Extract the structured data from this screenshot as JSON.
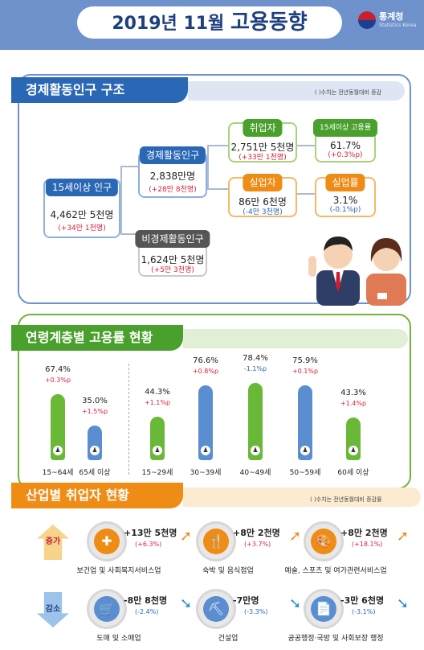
{
  "header": {
    "title_prefix": "2019년 11월",
    "title_main": "고용동향",
    "logo_name": "통계청",
    "logo_sub": "Statistics Korea"
  },
  "structure": {
    "title": "경제활동인구 구조",
    "note": "(   )수치는 전년동월대비 증감",
    "pop15": {
      "label": "15세이상 인구",
      "value": "4,462만 5천명",
      "delta": "(+34만 1천명)"
    },
    "active": {
      "label": "경제활동인구",
      "value": "2,838만명",
      "delta": "(+28만 8천명)"
    },
    "inactive": {
      "label": "비경제활동인구",
      "value": "1,624만 5천명",
      "delta": "(+5만 3천명)"
    },
    "employed": {
      "label": "취업자",
      "value": "2,751만 5천명",
      "delta": "(+33만 1천명)"
    },
    "unemployed": {
      "label": "실업자",
      "value": "86만 6천명",
      "delta": "(-4만 3천명)"
    },
    "emp_rate": {
      "label": "15세이상 고용률",
      "value": "61.7%",
      "delta": "(+0.3%p)"
    },
    "unemp_rate": {
      "label": "실업률",
      "value": "3.1%",
      "delta": "(-0.1%p)"
    }
  },
  "age": {
    "title": "연령계층별 고용률 현황",
    "chart_data": {
      "type": "bar",
      "categories": [
        "15~64세",
        "65세 이상",
        "15~29세",
        "30~39세",
        "40~49세",
        "50~59세",
        "60세 이상"
      ],
      "values": [
        67.4,
        35.0,
        44.3,
        76.6,
        78.4,
        75.9,
        43.3
      ],
      "value_labels": [
        "67.4%",
        "35.0%",
        "44.3%",
        "76.6%",
        "78.4%",
        "75.9%",
        "43.3%"
      ],
      "delta_labels": [
        "+0.3%p",
        "+1.5%p",
        "+1.1%p",
        "+0.8%p",
        "-1.1%p",
        "+0.1%p",
        "+1.4%p"
      ],
      "colors": [
        "#6ab838",
        "#5b8ed1",
        "#6ab838",
        "#5b8ed1",
        "#6ab838",
        "#5b8ed1",
        "#6ab838"
      ]
    }
  },
  "industry": {
    "title": "산업별 취업자 현황",
    "note": "(   )수치는 전년동월대비 증감률",
    "increase_label": "증가",
    "decrease_label": "감소",
    "increase": [
      {
        "name": "보건업 및 사회복지서비스업",
        "value": "+13만 5천명",
        "delta": "(+6.3%)",
        "icon": "medical-kit-icon"
      },
      {
        "name": "숙박 및 음식점업",
        "value": "+8만 2천명",
        "delta": "(+3.7%)",
        "icon": "dining-icon"
      },
      {
        "name": "예술, 스포츠 및 여가관련서비스업",
        "value": "+8만 2천명",
        "delta": "(+18.1%)",
        "icon": "palette-icon"
      }
    ],
    "decrease": [
      {
        "name": "도매 및 소매업",
        "value": "-8만 8천명",
        "delta": "(-2.4%)",
        "icon": "basket-icon"
      },
      {
        "name": "건설업",
        "value": "-7만명",
        "delta": "(-3.3%)",
        "icon": "excavator-icon"
      },
      {
        "name": "공공행정·국방 및 사회보장 행정",
        "value": "-3만 6천명",
        "delta": "(-3.1%)",
        "icon": "document-icon"
      }
    ]
  }
}
